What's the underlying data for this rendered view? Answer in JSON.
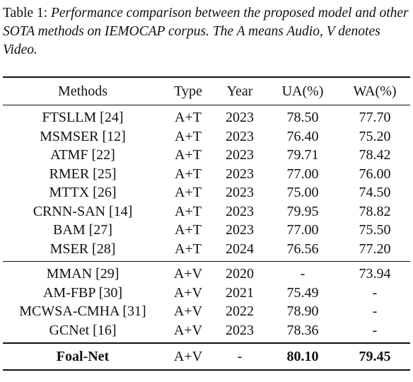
{
  "caption": {
    "label": "Table 1: ",
    "text": "Performance comparison between the proposed model and other SOTA methods on IEMOCAP corpus. The A means Audio, V denotes Video."
  },
  "table": {
    "headers": [
      "Methods",
      "Type",
      "Year",
      "UA(%)",
      "WA(%)"
    ],
    "group_at": [
      [
        "FTSLLM [24]",
        "A+T",
        "2023",
        "78.50",
        "77.70"
      ],
      [
        "MSMSER [12]",
        "A+T",
        "2023",
        "76.40",
        "75.20"
      ],
      [
        "ATMF [22]",
        "A+T",
        "2023",
        "79.71",
        "78.42"
      ],
      [
        "RMER [25]",
        "A+T",
        "2023",
        "77.00",
        "76.00"
      ],
      [
        "MTTX [26]",
        "A+T",
        "2023",
        "75.00",
        "74.50"
      ],
      [
        "CRNN-SAN [14]",
        "A+T",
        "2023",
        "79.95",
        "78.82"
      ],
      [
        "BAM [27]",
        "A+T",
        "2023",
        "77.00",
        "75.50"
      ],
      [
        "MSER [28]",
        "A+T",
        "2024",
        "76.56",
        "77.20"
      ]
    ],
    "group_av": [
      [
        "MMAN [29]",
        "A+V",
        "2020",
        "-",
        "73.94"
      ],
      [
        "AM-FBP [30]",
        "A+V",
        "2021",
        "75.49",
        "-"
      ],
      [
        "MCWSA-CMHA [31]",
        "A+V",
        "2022",
        "78.90",
        "-"
      ],
      [
        "GCNet [16]",
        "A+V",
        "2023",
        "78.36",
        "-"
      ]
    ],
    "proposed": [
      "Foal-Net",
      "A+V",
      "-",
      "80.10",
      "79.45"
    ]
  }
}
